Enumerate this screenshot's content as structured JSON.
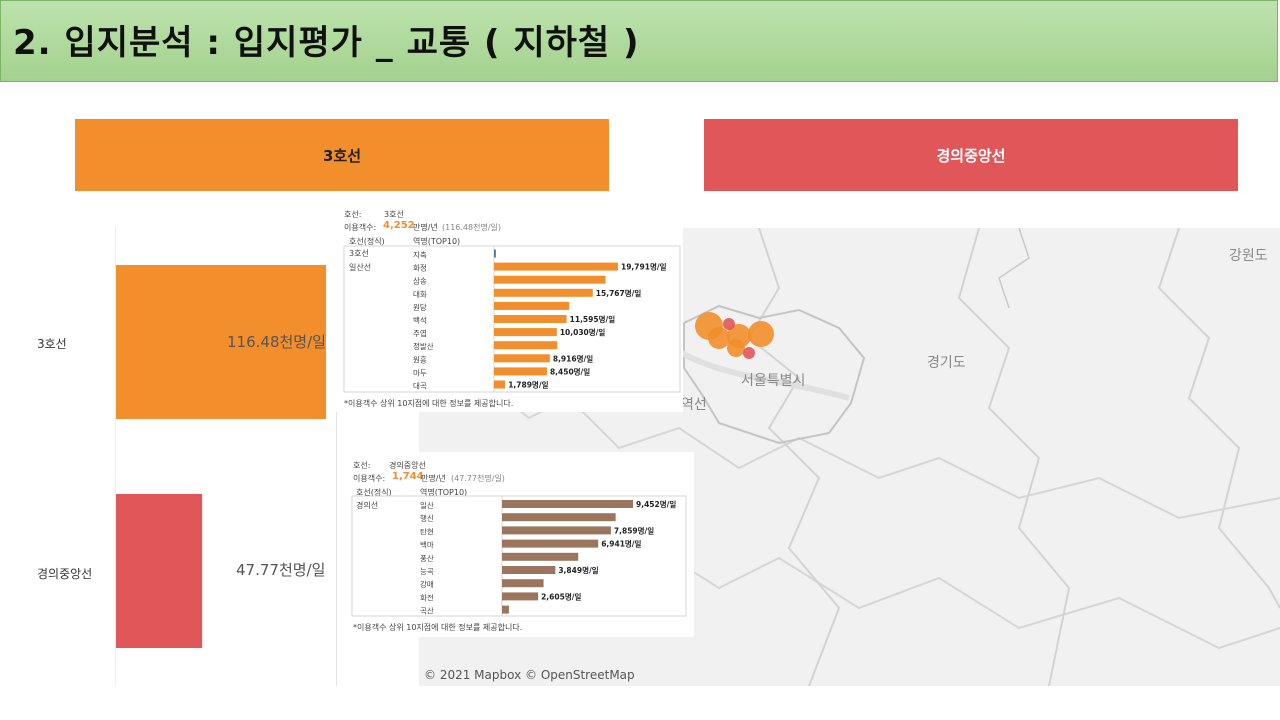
{
  "header": {
    "title": "2. 입지분석 : 입지평가 _ 교통 ( 지하철 )"
  },
  "tabs": {
    "line1": "3호선",
    "line2": "경의중앙선"
  },
  "chart_data": [
    {
      "type": "bar",
      "orientation": "horizontal",
      "categories": [
        "3호선",
        "경의중앙선"
      ],
      "values": [
        116.48,
        47.77
      ],
      "value_labels": [
        "116.48천명/일",
        "47.77천명/일"
      ],
      "colors": [
        "#f28e2b",
        "#e15759"
      ],
      "unit": "천명/일"
    },
    {
      "type": "bar",
      "orientation": "horizontal",
      "line_key": "호선:",
      "line_value": "3호선",
      "annual_key": "이용객수:",
      "annual_main": "4,252",
      "annual_unit": "만명/년",
      "annual_detail": "(116.48천명/일)",
      "col_headers": [
        "호선(정식)",
        "역명(TOP10)"
      ],
      "row_groups": [
        {
          "line": "3호선",
          "stations": [
            "지축"
          ]
        },
        {
          "line": "일산선",
          "stations": [
            "화정",
            "삼송",
            "대화",
            "원당",
            "백석",
            "주엽",
            "정발산",
            "원흥",
            "마두",
            "대곡"
          ]
        }
      ],
      "categories": [
        "지축",
        "화정",
        "삼송",
        "대화",
        "원당",
        "백석",
        "주엽",
        "정발산",
        "원흥",
        "마두",
        "대곡"
      ],
      "values": [
        300,
        19791,
        17800,
        15767,
        12000,
        11595,
        10030,
        10100,
        8916,
        8450,
        1789
      ],
      "data_labels": [
        "",
        "19,791명/일",
        "",
        "15,767명/일",
        "",
        "11,595명/일",
        "10,030명/일",
        "",
        "8,916명/일",
        "8,450명/일",
        "1,789명/일"
      ],
      "bar_colors": [
        "#4e79a7",
        "#f28e2b",
        "#f28e2b",
        "#f28e2b",
        "#f28e2b",
        "#f28e2b",
        "#f28e2b",
        "#f28e2b",
        "#f28e2b",
        "#f28e2b",
        "#f28e2b"
      ],
      "footnote": "*이용객수 상위 10지점에 대한 정보를 제공합니다."
    },
    {
      "type": "bar",
      "orientation": "horizontal",
      "line_key": "호선:",
      "line_value": "경의중앙선",
      "annual_key": "이용객수:",
      "annual_main": "1,744",
      "annual_unit": "만명/년",
      "annual_detail": "(47.77천명/일)",
      "col_headers": [
        "호선(정식)",
        "역명(TOP10)"
      ],
      "row_groups": [
        {
          "line": "경의선",
          "stations": [
            "일산",
            "행신",
            "탄현",
            "백마",
            "풍산",
            "능곡",
            "강매",
            "화전",
            "곡산"
          ]
        }
      ],
      "categories": [
        "일산",
        "행신",
        "탄현",
        "백마",
        "풍산",
        "능곡",
        "강매",
        "화전",
        "곡산"
      ],
      "values": [
        9452,
        8200,
        7859,
        6941,
        5500,
        3849,
        3000,
        2605,
        500
      ],
      "data_labels": [
        "9,452명/일",
        "",
        "7,859명/일",
        "6,941명/일",
        "",
        "3,849명/일",
        "",
        "2,605명/일",
        ""
      ],
      "bar_colors": [
        "#9c755f"
      ],
      "footnote": "*이용객수 상위 10지점에 대한 정보를 제공합니다."
    }
  ],
  "map": {
    "labels": {
      "gangwon": "강원도",
      "gyeonggi": "경기도",
      "seoul": "서울특별시",
      "station": "역선"
    },
    "credit": "© 2021 Mapbox  © OpenStreetMap",
    "marker_color": "#f28e2b"
  }
}
